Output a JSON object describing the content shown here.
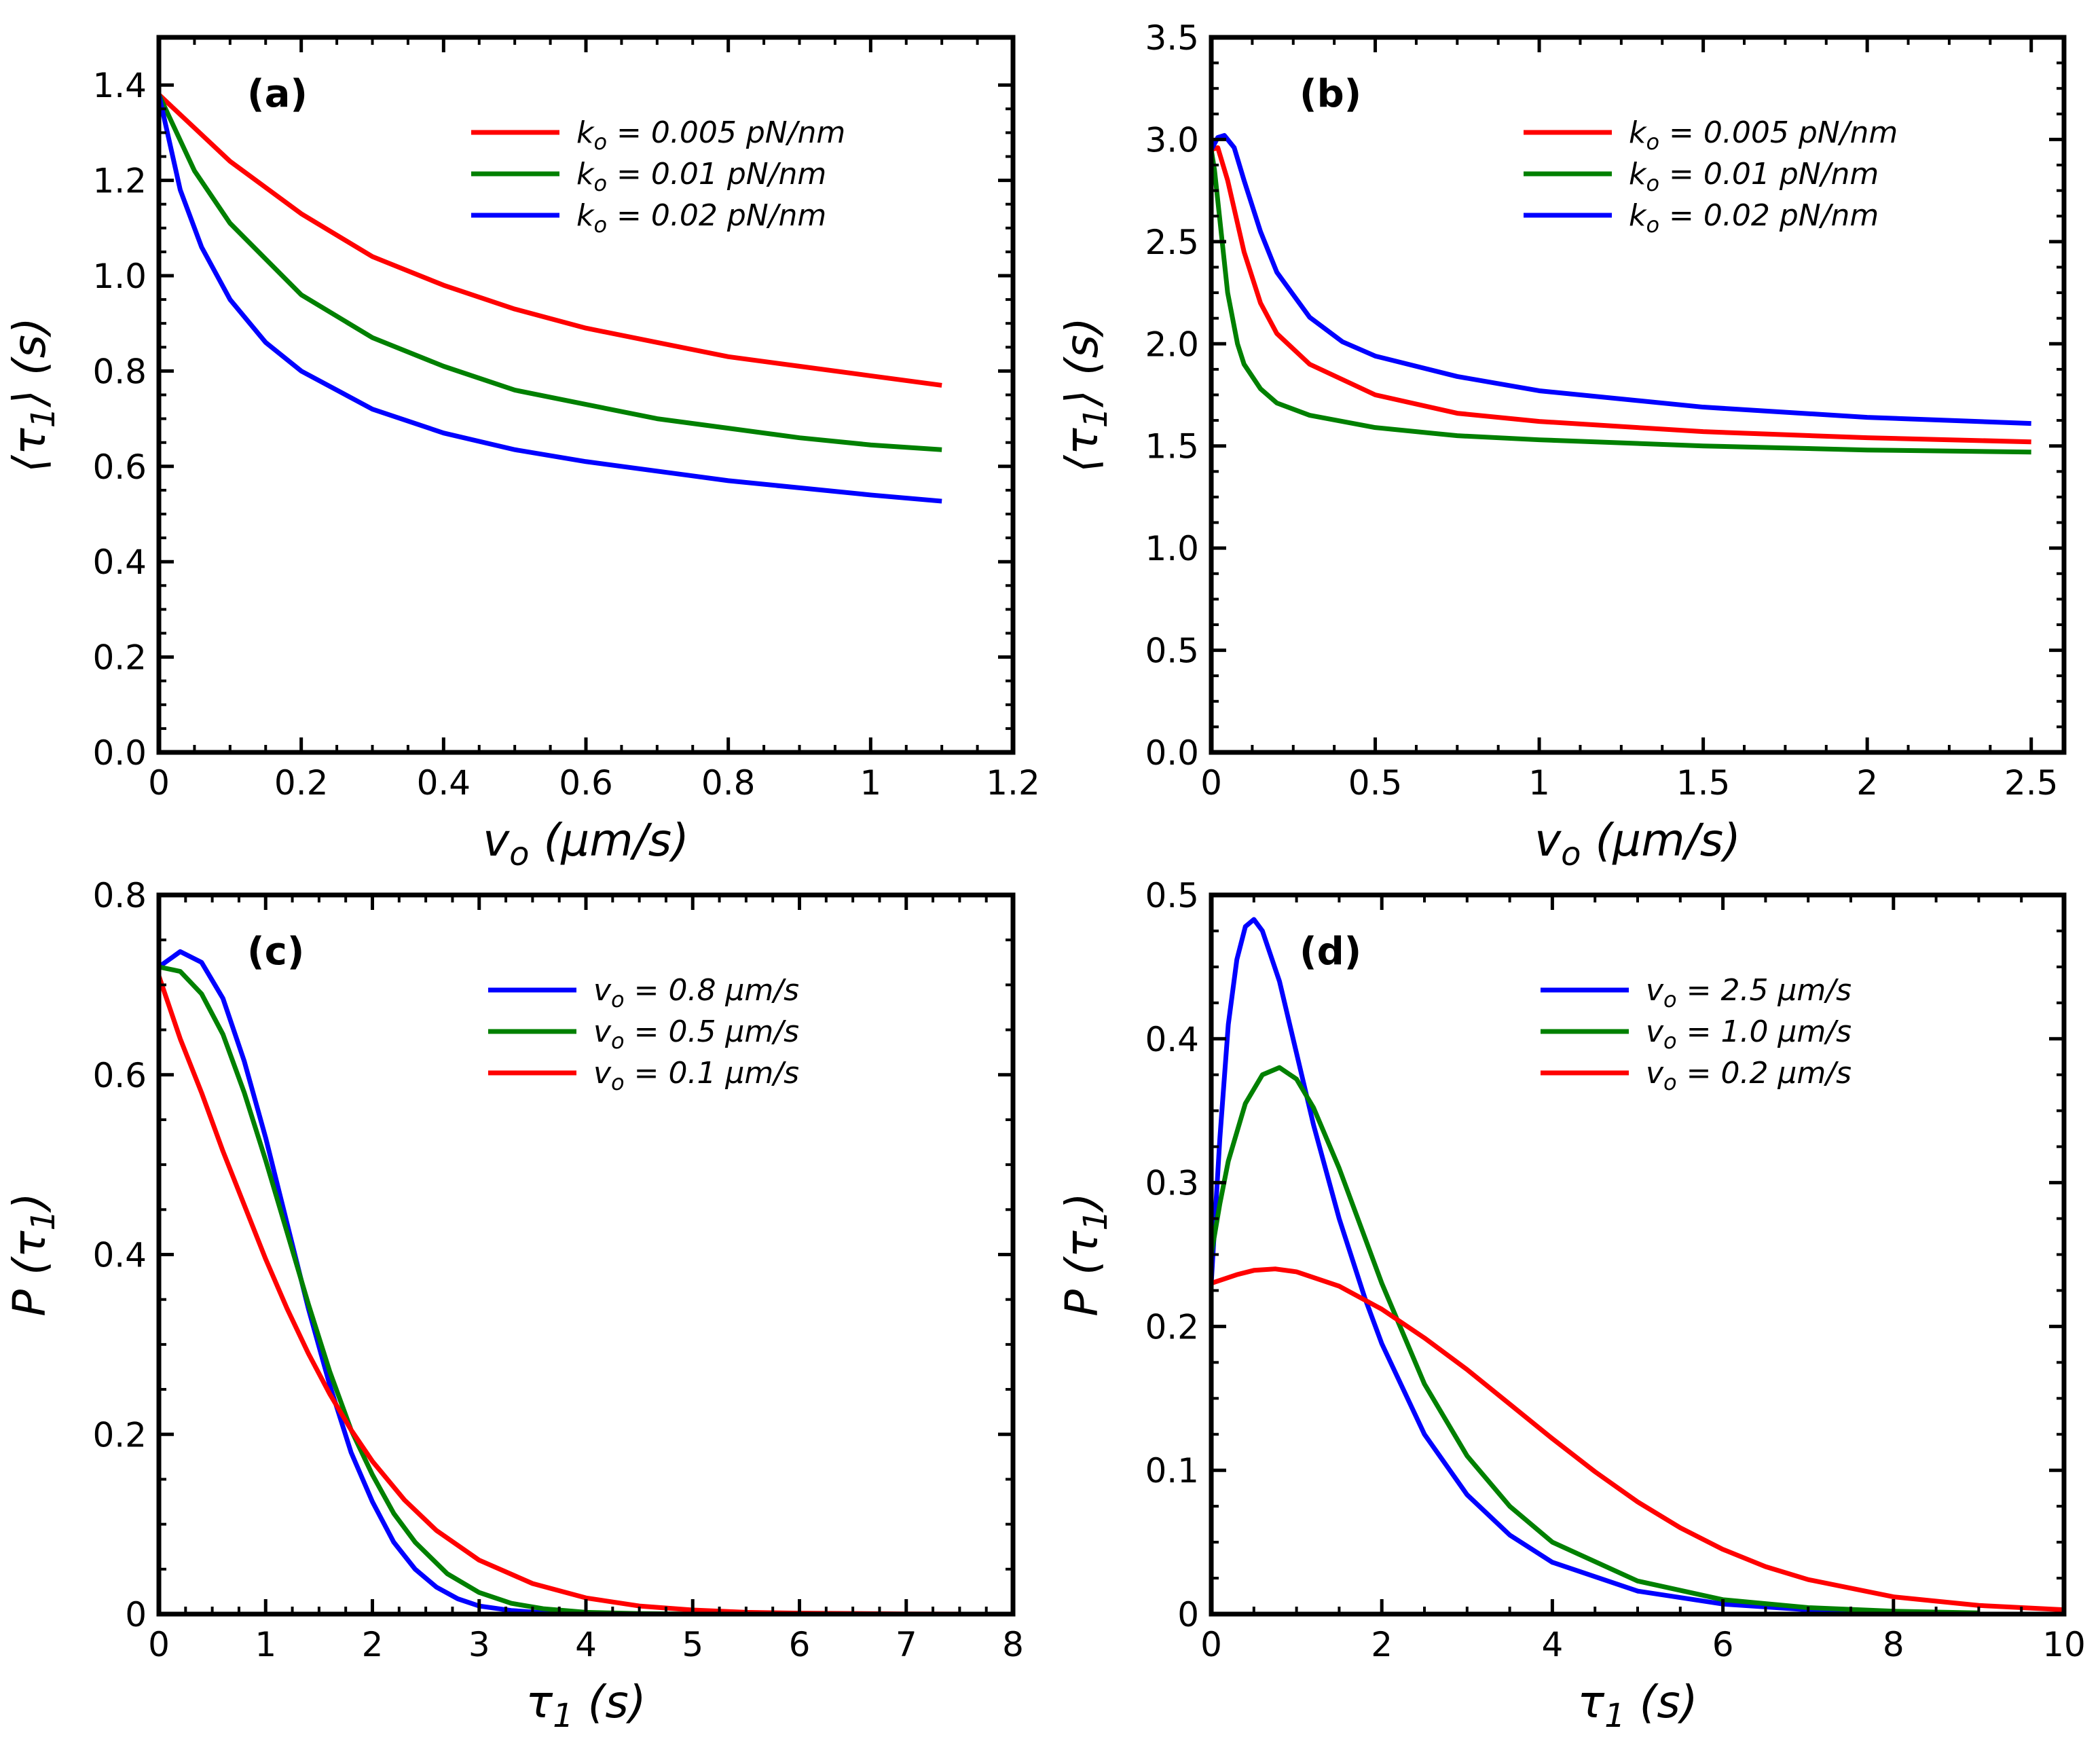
{
  "chart_data": [
    {
      "type": "line",
      "panel_label": "(a)",
      "xlabel": "v_o (μm/s)",
      "ylabel": "⟨τ_1⟩ (s)",
      "xlim": [
        0,
        1.2
      ],
      "ylim": [
        0,
        1.5
      ],
      "xticks": [
        0,
        0.2,
        0.4,
        0.6,
        0.8,
        1,
        1.2
      ],
      "xtick_labels": [
        "0",
        "0.2",
        "0.4",
        "0.6",
        "0.8",
        "1",
        "1.2"
      ],
      "yticks": [
        0,
        0.2,
        0.4,
        0.6,
        0.8,
        1.0,
        1.2,
        1.4
      ],
      "ytick_labels": [
        "0.0",
        "0.2",
        "0.4",
        "0.6",
        "0.8",
        "1.0",
        "1.2",
        "1.4"
      ],
      "legend_position": "top-right",
      "series": [
        {
          "name": "k_o = 0.005 pN/nm",
          "color": "#ff0000",
          "x": [
            0,
            0.05,
            0.1,
            0.2,
            0.3,
            0.4,
            0.5,
            0.6,
            0.7,
            0.8,
            0.9,
            1.0,
            1.1
          ],
          "y": [
            1.38,
            1.31,
            1.24,
            1.13,
            1.04,
            0.98,
            0.93,
            0.89,
            0.86,
            0.83,
            0.81,
            0.79,
            0.77
          ]
        },
        {
          "name": "k_o = 0.01 pN/nm",
          "color": "#008000",
          "x": [
            0,
            0.05,
            0.1,
            0.2,
            0.3,
            0.4,
            0.5,
            0.6,
            0.7,
            0.8,
            0.9,
            1.0,
            1.1
          ],
          "y": [
            1.38,
            1.22,
            1.11,
            0.96,
            0.87,
            0.81,
            0.76,
            0.73,
            0.7,
            0.68,
            0.66,
            0.645,
            0.635
          ]
        },
        {
          "name": "k_o = 0.02 pN/nm",
          "color": "#0000ff",
          "x": [
            0,
            0.03,
            0.06,
            0.1,
            0.15,
            0.2,
            0.3,
            0.4,
            0.5,
            0.6,
            0.7,
            0.8,
            0.9,
            1.0,
            1.1
          ],
          "y": [
            1.38,
            1.18,
            1.06,
            0.95,
            0.86,
            0.8,
            0.72,
            0.67,
            0.635,
            0.61,
            0.59,
            0.57,
            0.555,
            0.54,
            0.527
          ]
        }
      ]
    },
    {
      "type": "line",
      "panel_label": "(b)",
      "xlabel": "v_o (μm/s)",
      "ylabel": "⟨τ_1⟩ (s)",
      "xlim": [
        0,
        2.6
      ],
      "ylim": [
        0,
        3.5
      ],
      "xticks": [
        0,
        0.5,
        1,
        1.5,
        2,
        2.5
      ],
      "xtick_labels": [
        "0",
        "0.5",
        "1",
        "1.5",
        "2",
        "2.5"
      ],
      "yticks": [
        0,
        0.5,
        1.0,
        1.5,
        2.0,
        2.5,
        3.0,
        3.5
      ],
      "ytick_labels": [
        "0.0",
        "0.5",
        "1.0",
        "1.5",
        "2.0",
        "2.5",
        "3.0",
        "3.5"
      ],
      "legend_position": "top-right",
      "series": [
        {
          "name": "k_o = 0.005 pN/nm",
          "color": "#ff0000",
          "x": [
            0,
            0.02,
            0.05,
            0.1,
            0.15,
            0.2,
            0.3,
            0.5,
            0.75,
            1.0,
            1.5,
            2.0,
            2.5
          ],
          "y": [
            2.95,
            2.96,
            2.8,
            2.45,
            2.2,
            2.05,
            1.9,
            1.75,
            1.66,
            1.62,
            1.57,
            1.54,
            1.52
          ]
        },
        {
          "name": "k_o = 0.01 pN/nm",
          "color": "#008000",
          "x": [
            0,
            0.01,
            0.03,
            0.05,
            0.08,
            0.1,
            0.15,
            0.2,
            0.3,
            0.5,
            0.75,
            1.0,
            1.5,
            2.0,
            2.5
          ],
          "y": [
            2.95,
            2.85,
            2.55,
            2.25,
            2.0,
            1.9,
            1.78,
            1.71,
            1.65,
            1.59,
            1.55,
            1.53,
            1.5,
            1.48,
            1.47
          ]
        },
        {
          "name": "k_o = 0.02 pN/nm",
          "color": "#0000ff",
          "x": [
            0,
            0.02,
            0.04,
            0.07,
            0.1,
            0.15,
            0.2,
            0.3,
            0.4,
            0.5,
            0.75,
            1.0,
            1.5,
            2.0,
            2.5
          ],
          "y": [
            2.95,
            3.01,
            3.02,
            2.96,
            2.8,
            2.55,
            2.35,
            2.13,
            2.01,
            1.94,
            1.84,
            1.77,
            1.69,
            1.64,
            1.61
          ]
        }
      ]
    },
    {
      "type": "line",
      "panel_label": "(c)",
      "xlabel": "τ_1 (s)",
      "ylabel": "P (τ_1)",
      "xlim": [
        0,
        8
      ],
      "ylim": [
        0,
        0.8
      ],
      "xticks": [
        0,
        1,
        2,
        3,
        4,
        5,
        6,
        7,
        8
      ],
      "xtick_labels": [
        "0",
        "1",
        "2",
        "3",
        "4",
        "5",
        "6",
        "7",
        "8"
      ],
      "yticks": [
        0,
        0.2,
        0.4,
        0.6,
        0.8
      ],
      "ytick_labels": [
        "0",
        "0.2",
        "0.4",
        "0.6",
        "0.8"
      ],
      "legend_position": "top-right",
      "series": [
        {
          "name": "v_o = 0.8 μm/s",
          "color": "#0000ff",
          "x": [
            0,
            0.2,
            0.4,
            0.6,
            0.8,
            1.0,
            1.2,
            1.4,
            1.6,
            1.8,
            2.0,
            2.2,
            2.4,
            2.6,
            2.8,
            3.0,
            3.3,
            3.6,
            4.0,
            4.5
          ],
          "y": [
            0.72,
            0.737,
            0.725,
            0.685,
            0.615,
            0.53,
            0.435,
            0.34,
            0.255,
            0.18,
            0.125,
            0.08,
            0.05,
            0.03,
            0.017,
            0.009,
            0.004,
            0.0015,
            0.0004,
            0.0
          ]
        },
        {
          "name": "v_o = 0.5 μm/s",
          "color": "#008000",
          "x": [
            0,
            0.2,
            0.4,
            0.6,
            0.8,
            1.0,
            1.2,
            1.4,
            1.6,
            1.8,
            2.0,
            2.2,
            2.4,
            2.7,
            3.0,
            3.3,
            3.6,
            4.0,
            4.5,
            5.0
          ],
          "y": [
            0.72,
            0.715,
            0.69,
            0.645,
            0.58,
            0.505,
            0.425,
            0.345,
            0.27,
            0.205,
            0.155,
            0.112,
            0.08,
            0.045,
            0.024,
            0.012,
            0.006,
            0.002,
            0.0006,
            0.0001
          ]
        },
        {
          "name": "v_o = 0.1 μm/s",
          "color": "#ff0000",
          "x": [
            0,
            0.2,
            0.4,
            0.6,
            0.8,
            1.0,
            1.2,
            1.4,
            1.6,
            1.8,
            2.0,
            2.3,
            2.6,
            3.0,
            3.5,
            4.0,
            4.5,
            5.0,
            5.5,
            6.0,
            7.0,
            7.5
          ],
          "y": [
            0.71,
            0.64,
            0.58,
            0.515,
            0.455,
            0.395,
            0.34,
            0.29,
            0.245,
            0.205,
            0.17,
            0.127,
            0.093,
            0.06,
            0.034,
            0.018,
            0.009,
            0.0045,
            0.002,
            0.001,
            0.0002,
            0.0001
          ]
        }
      ]
    },
    {
      "type": "line",
      "panel_label": "(d)",
      "xlabel": "τ_1 (s)",
      "ylabel": "P (τ_1)",
      "xlim": [
        0,
        10
      ],
      "ylim": [
        0,
        0.5
      ],
      "xticks": [
        0,
        2,
        4,
        6,
        8,
        10
      ],
      "xtick_labels": [
        "0",
        "2",
        "4",
        "6",
        "8",
        "10"
      ],
      "yticks": [
        0,
        0.1,
        0.2,
        0.3,
        0.4,
        0.5
      ],
      "ytick_labels": [
        "0",
        "0.1",
        "0.2",
        "0.3",
        "0.4",
        "0.5"
      ],
      "legend_position": "top-right",
      "series": [
        {
          "name": "v_o = 2.5 μm/s",
          "color": "#0000ff",
          "x": [
            0,
            0.1,
            0.2,
            0.3,
            0.4,
            0.5,
            0.6,
            0.8,
            1.0,
            1.2,
            1.5,
            1.8,
            2.0,
            2.5,
            3.0,
            3.5,
            4.0,
            5.0,
            6.0,
            7.0,
            8.0,
            9.0
          ],
          "y": [
            0.23,
            0.33,
            0.41,
            0.455,
            0.478,
            0.483,
            0.475,
            0.44,
            0.39,
            0.34,
            0.275,
            0.22,
            0.188,
            0.125,
            0.083,
            0.055,
            0.036,
            0.016,
            0.007,
            0.003,
            0.0013,
            0.0005
          ]
        },
        {
          "name": "v_o = 1.0 μm/s",
          "color": "#008000",
          "x": [
            0,
            0.1,
            0.2,
            0.4,
            0.6,
            0.8,
            1.0,
            1.2,
            1.5,
            1.8,
            2.0,
            2.5,
            3.0,
            3.5,
            4.0,
            5.0,
            6.0,
            7.0,
            8.0,
            9.0
          ],
          "y": [
            0.25,
            0.285,
            0.315,
            0.355,
            0.375,
            0.38,
            0.372,
            0.352,
            0.31,
            0.262,
            0.23,
            0.16,
            0.11,
            0.075,
            0.05,
            0.023,
            0.01,
            0.0045,
            0.002,
            0.0008
          ]
        },
        {
          "name": "v_o = 0.2 μm/s",
          "color": "#ff0000",
          "x": [
            0,
            0.3,
            0.5,
            0.75,
            1.0,
            1.5,
            2.0,
            2.5,
            3.0,
            3.5,
            4.0,
            4.5,
            5.0,
            5.5,
            6.0,
            6.5,
            7.0,
            8.0,
            9.0,
            10.0
          ],
          "y": [
            0.23,
            0.236,
            0.239,
            0.24,
            0.238,
            0.228,
            0.212,
            0.192,
            0.17,
            0.146,
            0.122,
            0.099,
            0.078,
            0.06,
            0.045,
            0.033,
            0.024,
            0.012,
            0.006,
            0.003
          ]
        }
      ]
    }
  ]
}
